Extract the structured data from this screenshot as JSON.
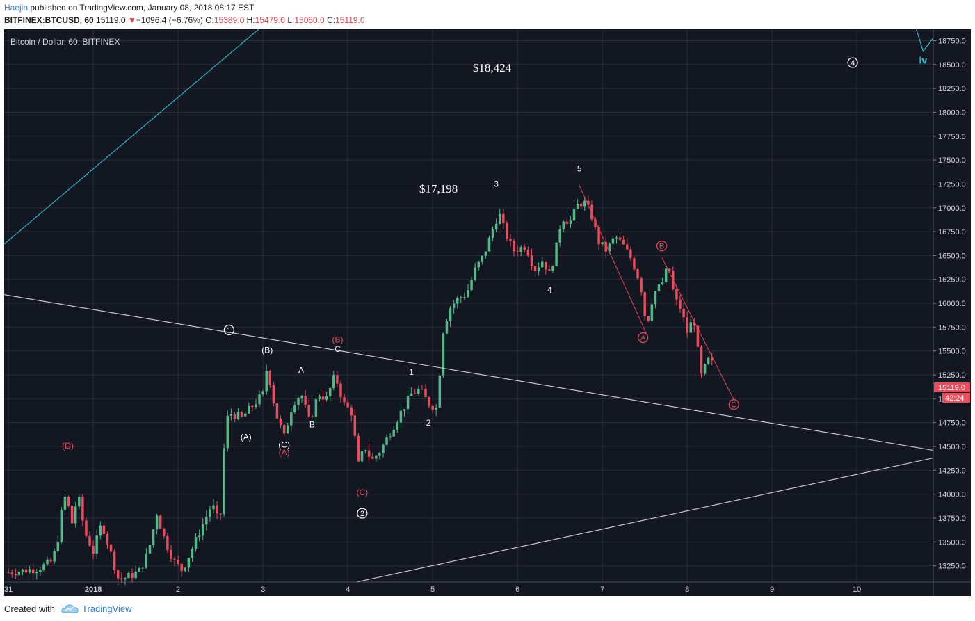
{
  "header": {
    "author": "Haejin",
    "published_text": "published on TradingView.com, January 08, 2018 08:17 EST",
    "symbol": "BITFINEX:BTCUSD, 60",
    "last": "15119.0",
    "change": "−1096.4 (−6.76%)",
    "o_label": "O:",
    "o_val": "15389.0",
    "h_label": "H:",
    "h_val": "15479.0",
    "l_label": "L:",
    "l_val": "15050.0",
    "c_label": "C:",
    "c_val": "15119.0"
  },
  "footer": {
    "created_with": "Created with",
    "brand": "TradingView"
  },
  "colors": {
    "background": "#131722",
    "grid": "#2a2e39",
    "up": "#53b987",
    "down": "#eb4d5c",
    "cyan": "#26c6da",
    "white_line": "#d1d4dc",
    "red_line": "#e0454f",
    "axis_text": "#d1d4dc"
  },
  "chart_data": {
    "type": "candlestick",
    "title": "Bitcoin / Dollar, 60, BITFINEX",
    "ylim": [
      13080,
      18870
    ],
    "y_ticks": [
      13250,
      13500,
      13750,
      14000,
      14250,
      14500,
      14750,
      15000,
      15250,
      15500,
      15750,
      16000,
      16250,
      16500,
      16750,
      17000,
      17250,
      17500,
      17750,
      18000,
      18250,
      18500,
      18750
    ],
    "y_tick_labels": [
      "13250.0",
      "13500.0",
      "13750.0",
      "14000.0",
      "14250.0",
      "14500.0",
      "14750.0",
      "15000.0",
      "15250.0",
      "15500.0",
      "15750.0",
      "16000.0",
      "16250.0",
      "16500.0",
      "16750.0",
      "17000.0",
      "17250.0",
      "17500.0",
      "17750.0",
      "18000.0",
      "18250.0",
      "18500.0",
      "18750.0"
    ],
    "x_range_days": [
      -0.05,
      10.9
    ],
    "x_ticks": [
      {
        "t": 0,
        "label": "31",
        "bold": false
      },
      {
        "t": 1,
        "label": "2018",
        "bold": true
      },
      {
        "t": 2,
        "label": "2",
        "bold": false
      },
      {
        "t": 3,
        "label": "3",
        "bold": false
      },
      {
        "t": 4,
        "label": "4",
        "bold": false
      },
      {
        "t": 5,
        "label": "5",
        "bold": false
      },
      {
        "t": 6,
        "label": "6",
        "bold": false
      },
      {
        "t": 7,
        "label": "7",
        "bold": false
      },
      {
        "t": 8,
        "label": "8",
        "bold": false
      },
      {
        "t": 9,
        "label": "9",
        "bold": false
      },
      {
        "t": 10,
        "label": "10",
        "bold": false
      }
    ],
    "last_price_label": "15119.0",
    "countdown_label": "42:24",
    "price_anchors": [
      [
        0.0,
        13180
      ],
      [
        0.35,
        13220
      ],
      [
        0.52,
        13300
      ],
      [
        0.6,
        13600
      ],
      [
        0.65,
        14000
      ],
      [
        0.7,
        13900
      ],
      [
        0.75,
        13700
      ],
      [
        0.82,
        14000
      ],
      [
        0.9,
        13600
      ],
      [
        1.0,
        13400
      ],
      [
        1.1,
        13700
      ],
      [
        1.2,
        13400
      ],
      [
        1.3,
        13100
      ],
      [
        1.45,
        13150
      ],
      [
        1.55,
        13200
      ],
      [
        1.65,
        13400
      ],
      [
        1.75,
        13800
      ],
      [
        1.85,
        13500
      ],
      [
        1.95,
        13300
      ],
      [
        2.05,
        13200
      ],
      [
        2.2,
        13500
      ],
      [
        2.3,
        13700
      ],
      [
        2.4,
        13900
      ],
      [
        2.48,
        13700
      ],
      [
        2.52,
        13900
      ],
      [
        2.55,
        14700
      ],
      [
        2.6,
        14850
      ],
      [
        2.75,
        14800
      ],
      [
        2.85,
        14900
      ],
      [
        3.0,
        15050
      ],
      [
        3.05,
        15350
      ],
      [
        3.15,
        14850
      ],
      [
        3.25,
        14600
      ],
      [
        3.35,
        14950
      ],
      [
        3.45,
        15050
      ],
      [
        3.55,
        14750
      ],
      [
        3.65,
        15050
      ],
      [
        3.75,
        15000
      ],
      [
        3.85,
        15250
      ],
      [
        3.95,
        14950
      ],
      [
        4.05,
        14850
      ],
      [
        4.12,
        14300
      ],
      [
        4.2,
        14500
      ],
      [
        4.28,
        14350
      ],
      [
        4.38,
        14450
      ],
      [
        4.5,
        14650
      ],
      [
        4.62,
        14850
      ],
      [
        4.75,
        15050
      ],
      [
        4.85,
        15100
      ],
      [
        4.95,
        14950
      ],
      [
        5.05,
        14900
      ],
      [
        5.12,
        15700
      ],
      [
        5.2,
        15950
      ],
      [
        5.3,
        16050
      ],
      [
        5.4,
        16100
      ],
      [
        5.5,
        16350
      ],
      [
        5.6,
        16500
      ],
      [
        5.7,
        16750
      ],
      [
        5.78,
        16950
      ],
      [
        5.85,
        16750
      ],
      [
        5.95,
        16550
      ],
      [
        6.1,
        16600
      ],
      [
        6.2,
        16350
      ],
      [
        6.3,
        16450
      ],
      [
        6.38,
        16300
      ],
      [
        6.45,
        16550
      ],
      [
        6.52,
        16900
      ],
      [
        6.62,
        16850
      ],
      [
        6.72,
        17050
      ],
      [
        6.8,
        17050
      ],
      [
        6.88,
        16900
      ],
      [
        6.95,
        16650
      ],
      [
        7.05,
        16550
      ],
      [
        7.15,
        16700
      ],
      [
        7.25,
        16600
      ],
      [
        7.35,
        16450
      ],
      [
        7.45,
        16200
      ],
      [
        7.52,
        15750
      ],
      [
        7.6,
        16100
      ],
      [
        7.7,
        16200
      ],
      [
        7.78,
        16400
      ],
      [
        7.85,
        16050
      ],
      [
        7.92,
        15950
      ],
      [
        8.0,
        15700
      ],
      [
        8.05,
        15800
      ],
      [
        8.1,
        15800
      ],
      [
        8.15,
        15200
      ],
      [
        8.22,
        15350
      ],
      [
        8.28,
        15450
      ],
      [
        8.33,
        15119
      ]
    ],
    "trendlines": [
      {
        "color": "cyan",
        "points": [
          [
            -0.05,
            16620
          ],
          [
            2.95,
            18870
          ]
        ]
      },
      {
        "color": "white",
        "points": [
          [
            -0.05,
            16090
          ],
          [
            10.9,
            14460
          ]
        ]
      },
      {
        "color": "white",
        "points": [
          [
            4.1,
            13080
          ],
          [
            10.9,
            14380
          ]
        ]
      },
      {
        "color": "red",
        "points": [
          [
            6.72,
            17250
          ],
          [
            7.52,
            15680
          ]
        ]
      },
      {
        "color": "red",
        "points": [
          [
            7.7,
            16480
          ],
          [
            8.55,
            14990
          ]
        ]
      },
      {
        "color": "cyan",
        "points": [
          [
            10.7,
            18870
          ],
          [
            10.78,
            18640
          ],
          [
            10.9,
            18780
          ]
        ]
      }
    ],
    "annotations": [
      {
        "t": 5.7,
        "p": 18424,
        "text": "$18,424",
        "kind": "price",
        "color": "white"
      },
      {
        "t": 5.07,
        "p": 17160,
        "text": "$17,198",
        "kind": "price",
        "color": "white"
      },
      {
        "t": 9.95,
        "p": 18520,
        "text": "4",
        "kind": "circle",
        "color": "white"
      },
      {
        "t": 10.78,
        "p": 18510,
        "text": "iv",
        "kind": "label-bold",
        "color": "cyan"
      },
      {
        "t": 6.73,
        "p": 17380,
        "text": "5",
        "kind": "label",
        "color": "white"
      },
      {
        "t": 5.75,
        "p": 17220,
        "text": "3",
        "kind": "label",
        "color": "white"
      },
      {
        "t": 6.38,
        "p": 16110,
        "text": "4",
        "kind": "label",
        "color": "white"
      },
      {
        "t": 4.75,
        "p": 15250,
        "text": "1",
        "kind": "label",
        "color": "white"
      },
      {
        "t": 4.95,
        "p": 14720,
        "text": "2",
        "kind": "label",
        "color": "white"
      },
      {
        "t": 2.6,
        "p": 15720,
        "text": "1",
        "kind": "circle",
        "color": "white"
      },
      {
        "t": 4.17,
        "p": 13800,
        "text": "2",
        "kind": "circle",
        "color": "white"
      },
      {
        "t": 3.05,
        "p": 15480,
        "text": "(B)",
        "kind": "label",
        "color": "white"
      },
      {
        "t": 3.88,
        "p": 15590,
        "text": "(B)",
        "kind": "label",
        "color": "red"
      },
      {
        "t": 3.88,
        "p": 15490,
        "text": "C",
        "kind": "label",
        "color": "white"
      },
      {
        "t": 3.45,
        "p": 15270,
        "text": "A",
        "kind": "label",
        "color": "white"
      },
      {
        "t": 2.8,
        "p": 14570,
        "text": "(A)",
        "kind": "label",
        "color": "white"
      },
      {
        "t": 3.58,
        "p": 14700,
        "text": "B",
        "kind": "label",
        "color": "white"
      },
      {
        "t": 3.25,
        "p": 14490,
        "text": "(C)",
        "kind": "label",
        "color": "white"
      },
      {
        "t": 3.25,
        "p": 14410,
        "text": "(A)",
        "kind": "label",
        "color": "red"
      },
      {
        "t": 4.17,
        "p": 13990,
        "text": "(C)",
        "kind": "label",
        "color": "red"
      },
      {
        "t": 0.7,
        "p": 14480,
        "text": "(D)",
        "kind": "label",
        "color": "red"
      },
      {
        "t": 7.7,
        "p": 16600,
        "text": "B",
        "kind": "circle",
        "color": "red"
      },
      {
        "t": 7.48,
        "p": 15640,
        "text": "A",
        "kind": "circle",
        "color": "red"
      },
      {
        "t": 8.55,
        "p": 14940,
        "text": "C",
        "kind": "circle",
        "color": "red"
      }
    ]
  }
}
